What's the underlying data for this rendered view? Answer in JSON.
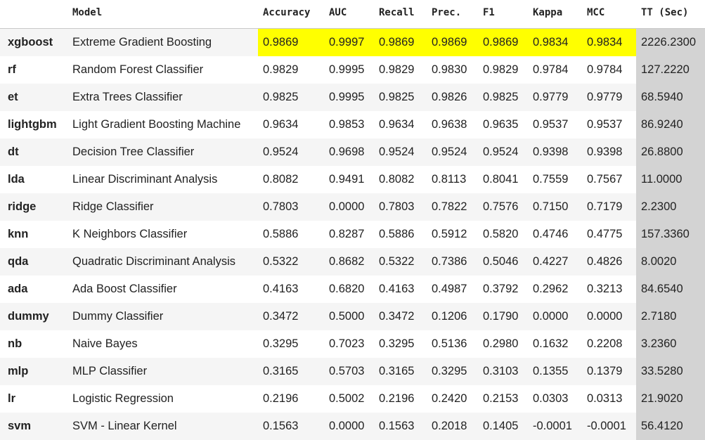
{
  "table": {
    "headers": [
      "",
      "Model",
      "Accuracy",
      "AUC",
      "Recall",
      "Prec.",
      "F1",
      "Kappa",
      "MCC",
      "TT (Sec)"
    ],
    "rows": [
      {
        "id": "xgboost",
        "model": "Extreme Gradient Boosting",
        "values": [
          "0.9869",
          "0.9997",
          "0.9869",
          "0.9869",
          "0.9869",
          "0.9834",
          "0.9834",
          "2226.2300"
        ]
      },
      {
        "id": "rf",
        "model": "Random Forest Classifier",
        "values": [
          "0.9829",
          "0.9995",
          "0.9829",
          "0.9830",
          "0.9829",
          "0.9784",
          "0.9784",
          "127.2220"
        ]
      },
      {
        "id": "et",
        "model": "Extra Trees Classifier",
        "values": [
          "0.9825",
          "0.9995",
          "0.9825",
          "0.9826",
          "0.9825",
          "0.9779",
          "0.9779",
          "68.5940"
        ]
      },
      {
        "id": "lightgbm",
        "model": "Light Gradient Boosting Machine",
        "values": [
          "0.9634",
          "0.9853",
          "0.9634",
          "0.9638",
          "0.9635",
          "0.9537",
          "0.9537",
          "86.9240"
        ]
      },
      {
        "id": "dt",
        "model": "Decision Tree Classifier",
        "values": [
          "0.9524",
          "0.9698",
          "0.9524",
          "0.9524",
          "0.9524",
          "0.9398",
          "0.9398",
          "26.8800"
        ]
      },
      {
        "id": "lda",
        "model": "Linear Discriminant Analysis",
        "values": [
          "0.8082",
          "0.9491",
          "0.8082",
          "0.8113",
          "0.8041",
          "0.7559",
          "0.7567",
          "11.0000"
        ]
      },
      {
        "id": "ridge",
        "model": "Ridge Classifier",
        "values": [
          "0.7803",
          "0.0000",
          "0.7803",
          "0.7822",
          "0.7576",
          "0.7150",
          "0.7179",
          "2.2300"
        ]
      },
      {
        "id": "knn",
        "model": "K Neighbors Classifier",
        "values": [
          "0.5886",
          "0.8287",
          "0.5886",
          "0.5912",
          "0.5820",
          "0.4746",
          "0.4775",
          "157.3360"
        ]
      },
      {
        "id": "qda",
        "model": "Quadratic Discriminant Analysis",
        "values": [
          "0.5322",
          "0.8682",
          "0.5322",
          "0.7386",
          "0.5046",
          "0.4227",
          "0.4826",
          "8.0020"
        ]
      },
      {
        "id": "ada",
        "model": "Ada Boost Classifier",
        "values": [
          "0.4163",
          "0.6820",
          "0.4163",
          "0.4987",
          "0.3792",
          "0.2962",
          "0.3213",
          "84.6540"
        ]
      },
      {
        "id": "dummy",
        "model": "Dummy Classifier",
        "values": [
          "0.3472",
          "0.5000",
          "0.3472",
          "0.1206",
          "0.1790",
          "0.0000",
          "0.0000",
          "2.7180"
        ]
      },
      {
        "id": "nb",
        "model": "Naive Bayes",
        "values": [
          "0.3295",
          "0.7023",
          "0.3295",
          "0.5136",
          "0.2980",
          "0.1632",
          "0.2208",
          "3.2360"
        ]
      },
      {
        "id": "mlp",
        "model": "MLP Classifier",
        "values": [
          "0.3165",
          "0.5703",
          "0.3165",
          "0.3295",
          "0.3103",
          "0.1355",
          "0.1379",
          "33.5280"
        ]
      },
      {
        "id": "lr",
        "model": "Logistic Regression",
        "values": [
          "0.2196",
          "0.5002",
          "0.2196",
          "0.2420",
          "0.2153",
          "0.0303",
          "0.0313",
          "21.9020"
        ]
      },
      {
        "id": "svm",
        "model": "SVM - Linear Kernel",
        "values": [
          "0.1563",
          "0.0000",
          "0.1563",
          "0.2018",
          "0.1405",
          "-0.0001",
          "-0.0001",
          "56.4120"
        ]
      }
    ]
  },
  "colors": {
    "highlight": "#ffff00",
    "tt_column": "#d3d3d3",
    "row_stripe": "#f5f5f5"
  }
}
